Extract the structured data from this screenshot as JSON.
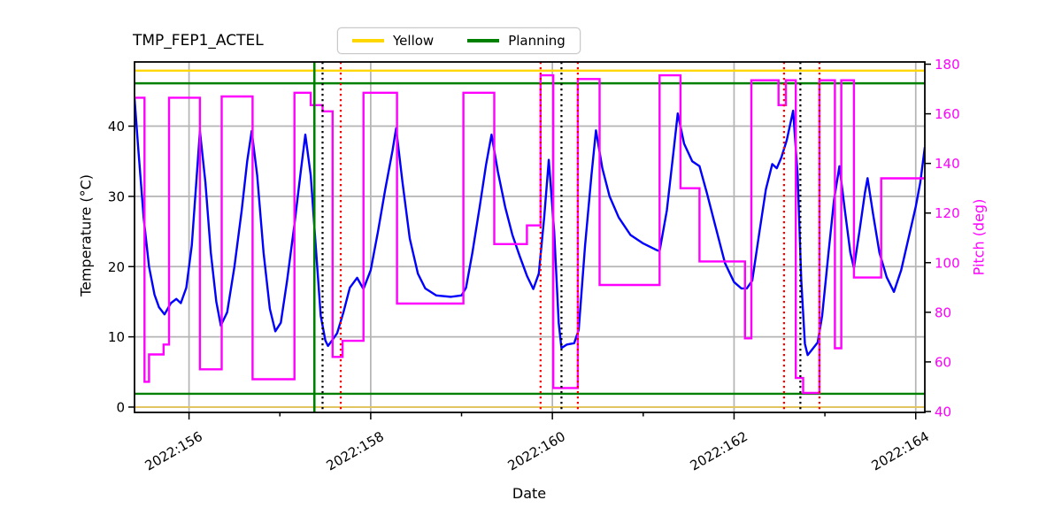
{
  "title": "TMP_FEP1_ACTEL",
  "legend": {
    "items": [
      {
        "label": "Yellow",
        "color": "#ffd700"
      },
      {
        "label": "Planning",
        "color": "#008000"
      }
    ]
  },
  "axes": {
    "xlabel": "Date",
    "ylabel_left": "Temperature (°C)",
    "ylabel_right": "Pitch (deg)",
    "xlim": [
      155.4,
      164.1
    ],
    "ylim_left": [
      -0.76,
      49.14
    ],
    "ylim_right": [
      39.64,
      180.9
    ],
    "x_ticks": [
      {
        "day": 156,
        "label": "2022:156",
        "major": true
      },
      {
        "day": 157,
        "label": "",
        "major": false
      },
      {
        "day": 158,
        "label": "2022:158",
        "major": true
      },
      {
        "day": 159,
        "label": "",
        "major": false
      },
      {
        "day": 160,
        "label": "2022:160",
        "major": true
      },
      {
        "day": 161,
        "label": "",
        "major": false
      },
      {
        "day": 162,
        "label": "2022:162",
        "major": true
      },
      {
        "day": 163,
        "label": "",
        "major": false
      },
      {
        "day": 164,
        "label": "2022:164",
        "major": true
      }
    ],
    "y_left_ticks": [
      0,
      10,
      20,
      30,
      40
    ],
    "y_right_ticks": [
      40,
      60,
      80,
      100,
      120,
      140,
      160,
      180
    ],
    "grid_color": "#b4b4b4",
    "frame_color": "#000000",
    "right_tick_label_color": "#ff00ff"
  },
  "limit_lines": [
    {
      "name": "yellow-high",
      "value": 47.9,
      "color": "#ffd700",
      "width": 2.4
    },
    {
      "name": "planning-high",
      "value": 46.1,
      "color": "#008000",
      "width": 2.4
    },
    {
      "name": "planning-low",
      "value": 1.9,
      "color": "#008000",
      "width": 2.4
    },
    {
      "name": "yellow-low",
      "value": 0.0,
      "color": "#e6c552",
      "width": 1.8
    }
  ],
  "event_lines": [
    {
      "day": 157.38,
      "color": "#008000",
      "style": "solid"
    },
    {
      "day": 157.47,
      "color": "#000000",
      "style": "dotted"
    },
    {
      "day": 157.67,
      "color": "#ff0000",
      "style": "dotted"
    },
    {
      "day": 159.87,
      "color": "#ff0000",
      "style": "dotted"
    },
    {
      "day": 160.1,
      "color": "#000000",
      "style": "dotted"
    },
    {
      "day": 160.28,
      "color": "#ff0000",
      "style": "dotted"
    },
    {
      "day": 162.55,
      "color": "#ff0000",
      "style": "dotted"
    },
    {
      "day": 162.73,
      "color": "#000000",
      "style": "dotted"
    },
    {
      "day": 162.94,
      "color": "#ff0000",
      "style": "dotted"
    }
  ],
  "chart_data": {
    "type": "line",
    "title": "TMP_FEP1_ACTEL",
    "xlabel": "Date",
    "ylabel": "Temperature (°C)",
    "y2label": "Pitch (deg)",
    "x_units": "year:day_of_year",
    "series": [
      {
        "name": "Temperature",
        "color": "#0000ff",
        "axis": "left",
        "type": "line",
        "width": 2.4,
        "points": [
          [
            155.4,
            44.0
          ],
          [
            155.44,
            37.0
          ],
          [
            155.5,
            27.0
          ],
          [
            155.56,
            20.0
          ],
          [
            155.62,
            16.0
          ],
          [
            155.67,
            14.2
          ],
          [
            155.73,
            13.2
          ],
          [
            155.8,
            14.8
          ],
          [
            155.86,
            15.4
          ],
          [
            155.91,
            14.8
          ],
          [
            155.97,
            17.0
          ],
          [
            156.03,
            23.0
          ],
          [
            156.08,
            32.0
          ],
          [
            156.12,
            39.3
          ],
          [
            156.18,
            32.0
          ],
          [
            156.24,
            22.0
          ],
          [
            156.3,
            15.0
          ],
          [
            156.35,
            11.6
          ],
          [
            156.42,
            13.5
          ],
          [
            156.5,
            20.0
          ],
          [
            156.58,
            28.0
          ],
          [
            156.64,
            35.0
          ],
          [
            156.69,
            39.3
          ],
          [
            156.75,
            33.0
          ],
          [
            156.82,
            22.0
          ],
          [
            156.89,
            14.0
          ],
          [
            156.95,
            10.8
          ],
          [
            157.01,
            12.0
          ],
          [
            157.08,
            18.0
          ],
          [
            157.16,
            26.0
          ],
          [
            157.23,
            33.5
          ],
          [
            157.28,
            38.8
          ],
          [
            157.34,
            33.0
          ],
          [
            157.4,
            22.0
          ],
          [
            157.45,
            13.0
          ],
          [
            157.5,
            9.5
          ],
          [
            157.53,
            8.7
          ],
          [
            157.58,
            9.6
          ],
          [
            157.63,
            10.5
          ],
          [
            157.7,
            13.5
          ],
          [
            157.77,
            17.0
          ],
          [
            157.85,
            18.4
          ],
          [
            157.92,
            16.8
          ],
          [
            158.0,
            19.5
          ],
          [
            158.08,
            25.0
          ],
          [
            158.16,
            31.0
          ],
          [
            158.24,
            36.5
          ],
          [
            158.28,
            39.7
          ],
          [
            158.35,
            32.0
          ],
          [
            158.43,
            24.0
          ],
          [
            158.52,
            19.0
          ],
          [
            158.6,
            16.9
          ],
          [
            158.72,
            15.9
          ],
          [
            158.88,
            15.7
          ],
          [
            159.0,
            15.9
          ],
          [
            159.05,
            17.0
          ],
          [
            159.12,
            22.0
          ],
          [
            159.2,
            28.5
          ],
          [
            159.27,
            34.5
          ],
          [
            159.33,
            38.8
          ],
          [
            159.4,
            33.5
          ],
          [
            159.48,
            28.5
          ],
          [
            159.56,
            24.5
          ],
          [
            159.64,
            21.5
          ],
          [
            159.72,
            18.7
          ],
          [
            159.79,
            16.8
          ],
          [
            159.85,
            19.0
          ],
          [
            159.91,
            27.0
          ],
          [
            159.96,
            35.2
          ],
          [
            160.02,
            25.0
          ],
          [
            160.07,
            12.0
          ],
          [
            160.1,
            8.4
          ],
          [
            160.16,
            8.9
          ],
          [
            160.24,
            9.1
          ],
          [
            160.29,
            11.0
          ],
          [
            160.36,
            23.0
          ],
          [
            160.43,
            33.0
          ],
          [
            160.48,
            39.4
          ],
          [
            160.55,
            34.0
          ],
          [
            160.63,
            30.0
          ],
          [
            160.73,
            27.0
          ],
          [
            160.86,
            24.5
          ],
          [
            161.0,
            23.3
          ],
          [
            161.14,
            22.4
          ],
          [
            161.18,
            22.2
          ],
          [
            161.26,
            28.0
          ],
          [
            161.33,
            36.0
          ],
          [
            161.38,
            41.8
          ],
          [
            161.45,
            37.5
          ],
          [
            161.54,
            35.0
          ],
          [
            161.62,
            34.3
          ],
          [
            161.7,
            30.5
          ],
          [
            161.8,
            25.5
          ],
          [
            161.9,
            20.5
          ],
          [
            162.0,
            17.8
          ],
          [
            162.08,
            16.9
          ],
          [
            162.14,
            16.9
          ],
          [
            162.2,
            18.0
          ],
          [
            162.28,
            25.0
          ],
          [
            162.35,
            31.0
          ],
          [
            162.42,
            34.6
          ],
          [
            162.47,
            34.0
          ],
          [
            162.52,
            35.5
          ],
          [
            162.58,
            38.0
          ],
          [
            162.65,
            42.2
          ],
          [
            162.7,
            33.0
          ],
          [
            162.74,
            18.0
          ],
          [
            162.78,
            9.0
          ],
          [
            162.81,
            7.4
          ],
          [
            162.86,
            8.2
          ],
          [
            162.92,
            9.2
          ],
          [
            162.97,
            13.0
          ],
          [
            163.04,
            22.0
          ],
          [
            163.1,
            29.5
          ],
          [
            163.16,
            34.3
          ],
          [
            163.22,
            28.0
          ],
          [
            163.28,
            22.0
          ],
          [
            163.32,
            19.8
          ],
          [
            163.38,
            25.0
          ],
          [
            163.44,
            30.5
          ],
          [
            163.47,
            32.6
          ],
          [
            163.53,
            27.5
          ],
          [
            163.6,
            22.0
          ],
          [
            163.68,
            18.5
          ],
          [
            163.76,
            16.4
          ],
          [
            163.84,
            19.5
          ],
          [
            163.92,
            24.0
          ],
          [
            164.0,
            28.5
          ],
          [
            164.05,
            32.0
          ],
          [
            164.1,
            37.0
          ]
        ]
      },
      {
        "name": "Pitch",
        "color": "#ff00ff",
        "axis": "right",
        "type": "step",
        "width": 2.4,
        "points": [
          [
            155.4,
            166.5
          ],
          [
            155.51,
            52.0
          ],
          [
            155.56,
            63.0
          ],
          [
            155.72,
            67.0
          ],
          [
            155.78,
            166.5
          ],
          [
            156.12,
            57.0
          ],
          [
            156.36,
            167.0
          ],
          [
            156.7,
            53.0
          ],
          [
            157.16,
            168.5
          ],
          [
            157.34,
            163.5
          ],
          [
            157.47,
            161.0
          ],
          [
            157.58,
            62.0
          ],
          [
            157.69,
            68.5
          ],
          [
            157.92,
            168.5
          ],
          [
            158.29,
            83.5
          ],
          [
            159.02,
            168.5
          ],
          [
            159.36,
            107.5
          ],
          [
            159.72,
            115.0
          ],
          [
            159.87,
            175.5
          ],
          [
            160.01,
            49.5
          ],
          [
            160.28,
            174.0
          ],
          [
            160.52,
            91.0
          ],
          [
            161.18,
            175.5
          ],
          [
            161.41,
            130.0
          ],
          [
            161.62,
            100.5
          ],
          [
            162.12,
            69.5
          ],
          [
            162.19,
            173.5
          ],
          [
            162.49,
            163.5
          ],
          [
            162.57,
            173.5
          ],
          [
            162.68,
            53.5
          ],
          [
            162.76,
            47.5
          ],
          [
            162.94,
            173.5
          ],
          [
            163.11,
            65.5
          ],
          [
            163.18,
            173.5
          ],
          [
            163.32,
            94.0
          ],
          [
            163.62,
            134.0
          ],
          [
            164.1,
            134.0
          ]
        ]
      }
    ],
    "reference_lines_left_axis": {
      "yellow_high": 47.9,
      "planning_high": 46.1,
      "planning_low": 1.9,
      "yellow_low": 0.0
    },
    "grid": true,
    "legend_position": "top-center"
  }
}
